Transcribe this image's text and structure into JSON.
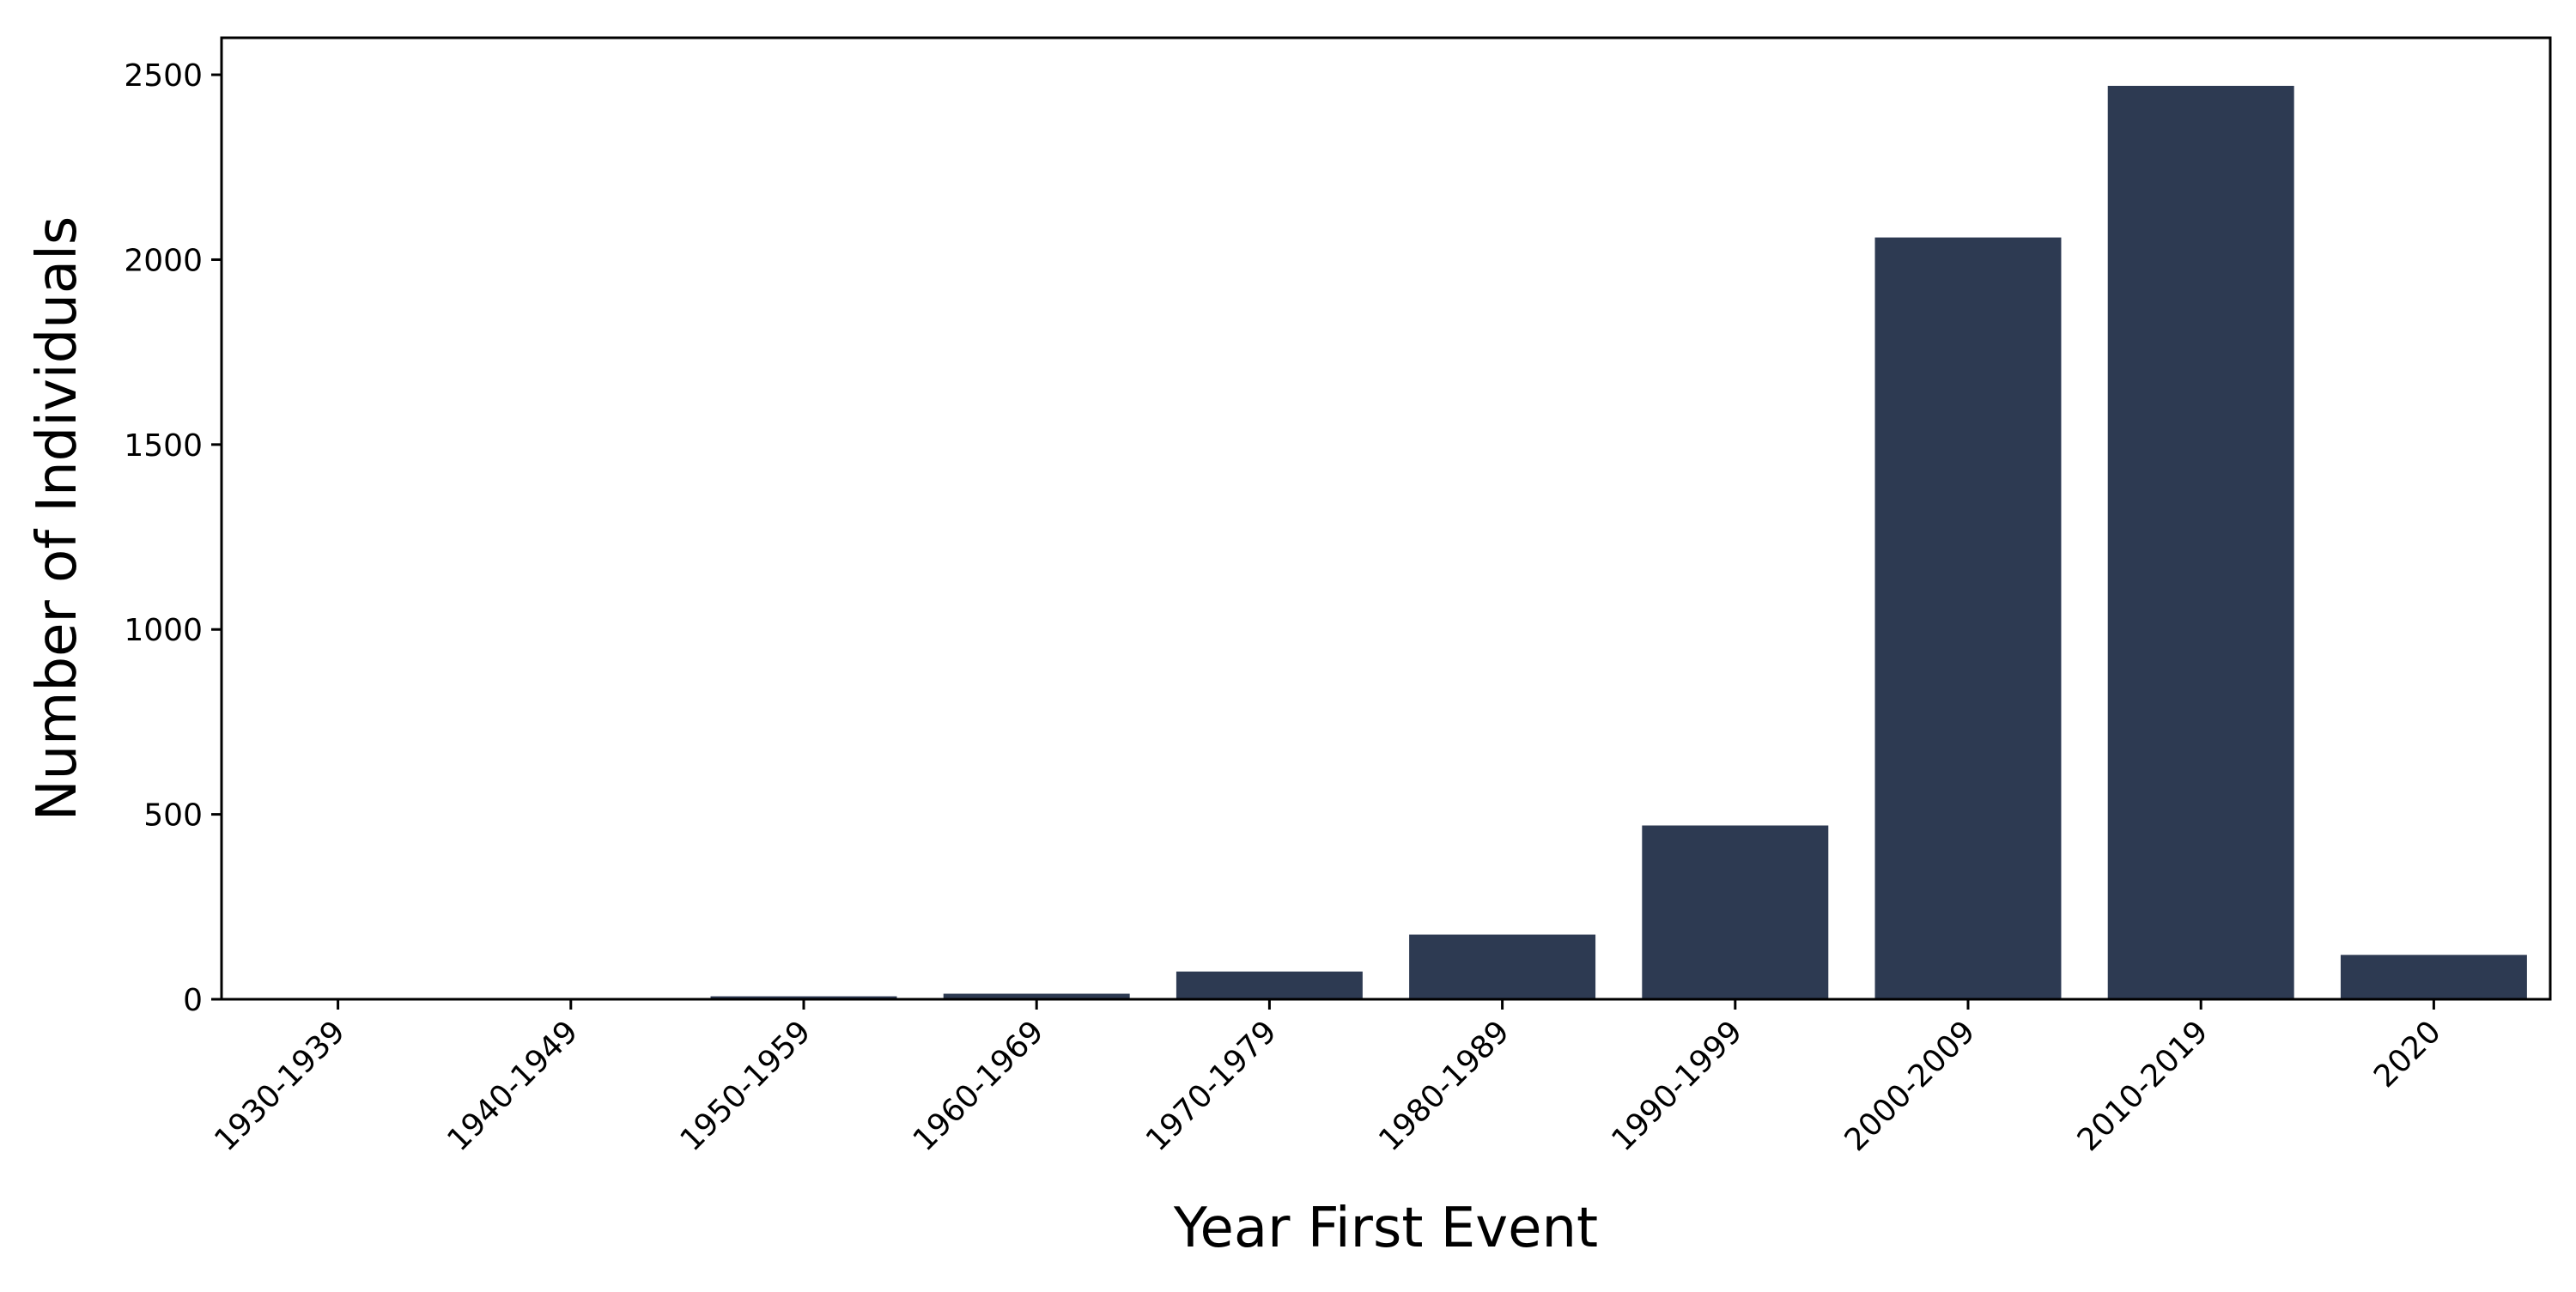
{
  "chart_data": {
    "type": "bar",
    "title": "",
    "xlabel": "Year First Event",
    "ylabel": "Number of Individuals",
    "categories": [
      "1930-1939",
      "1940-1949",
      "1950-1959",
      "1960-1969",
      "1970-1979",
      "1980-1989",
      "1990-1999",
      "2000-2009",
      "2010-2019",
      "2020"
    ],
    "values": [
      1,
      1,
      8,
      15,
      75,
      175,
      470,
      2060,
      2470,
      120
    ],
    "ylim": [
      0,
      2600
    ],
    "yticks": [
      0,
      500,
      1000,
      1500,
      2000,
      2500
    ],
    "bar_color": "#2d3a52",
    "grid": false,
    "legend": "none"
  }
}
